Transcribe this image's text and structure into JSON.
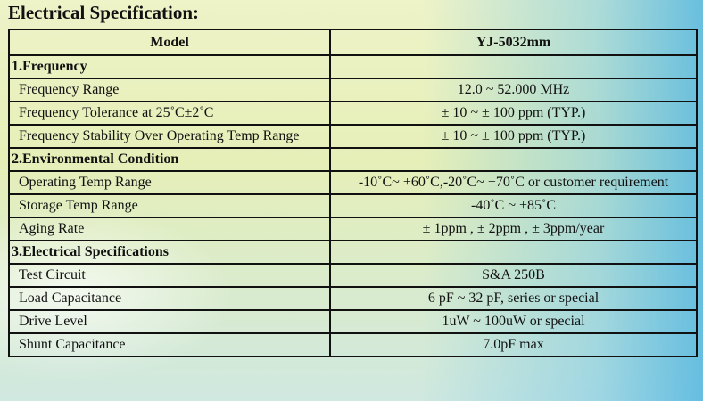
{
  "title": "Electrical Specification:",
  "header": {
    "col1": "Model",
    "col2": "YJ-5032mm"
  },
  "sections": [
    {
      "label": "1.Frequency",
      "rows": [
        {
          "param": "Frequency Range",
          "value": "12.0 ~ 52.000 MHz"
        },
        {
          "param": "Frequency Tolerance at 25˚C±2˚C",
          "value": "± 10 ~ ± 100 ppm (TYP.)"
        },
        {
          "param": "Frequency Stability Over Operating Temp Range",
          "value": "± 10 ~ ± 100 ppm (TYP.)"
        }
      ]
    },
    {
      "label": "2.Environmental Condition",
      "rows": [
        {
          "param": "Operating Temp Range",
          "value": "-10˚C~ +60˚C,-20˚C~ +70˚C or customer requirement"
        },
        {
          "param": "Storage Temp Range",
          "value": "-40˚C ~ +85˚C"
        },
        {
          "param": "Aging Rate",
          "value": "± 1ppm , ± 2ppm , ± 3ppm/year"
        }
      ]
    },
    {
      "label": "3.Electrical Specifications",
      "rows": [
        {
          "param": "Test Circuit",
          "value": "S&A 250B"
        },
        {
          "param": "Load Capacitance",
          "value": "6 pF ~ 32 pF, series or special"
        },
        {
          "param": "Drive Level",
          "value": "1uW ~ 100uW or special"
        },
        {
          "param": "Shunt Capacitance",
          "value": "7.0pF max"
        }
      ]
    }
  ]
}
